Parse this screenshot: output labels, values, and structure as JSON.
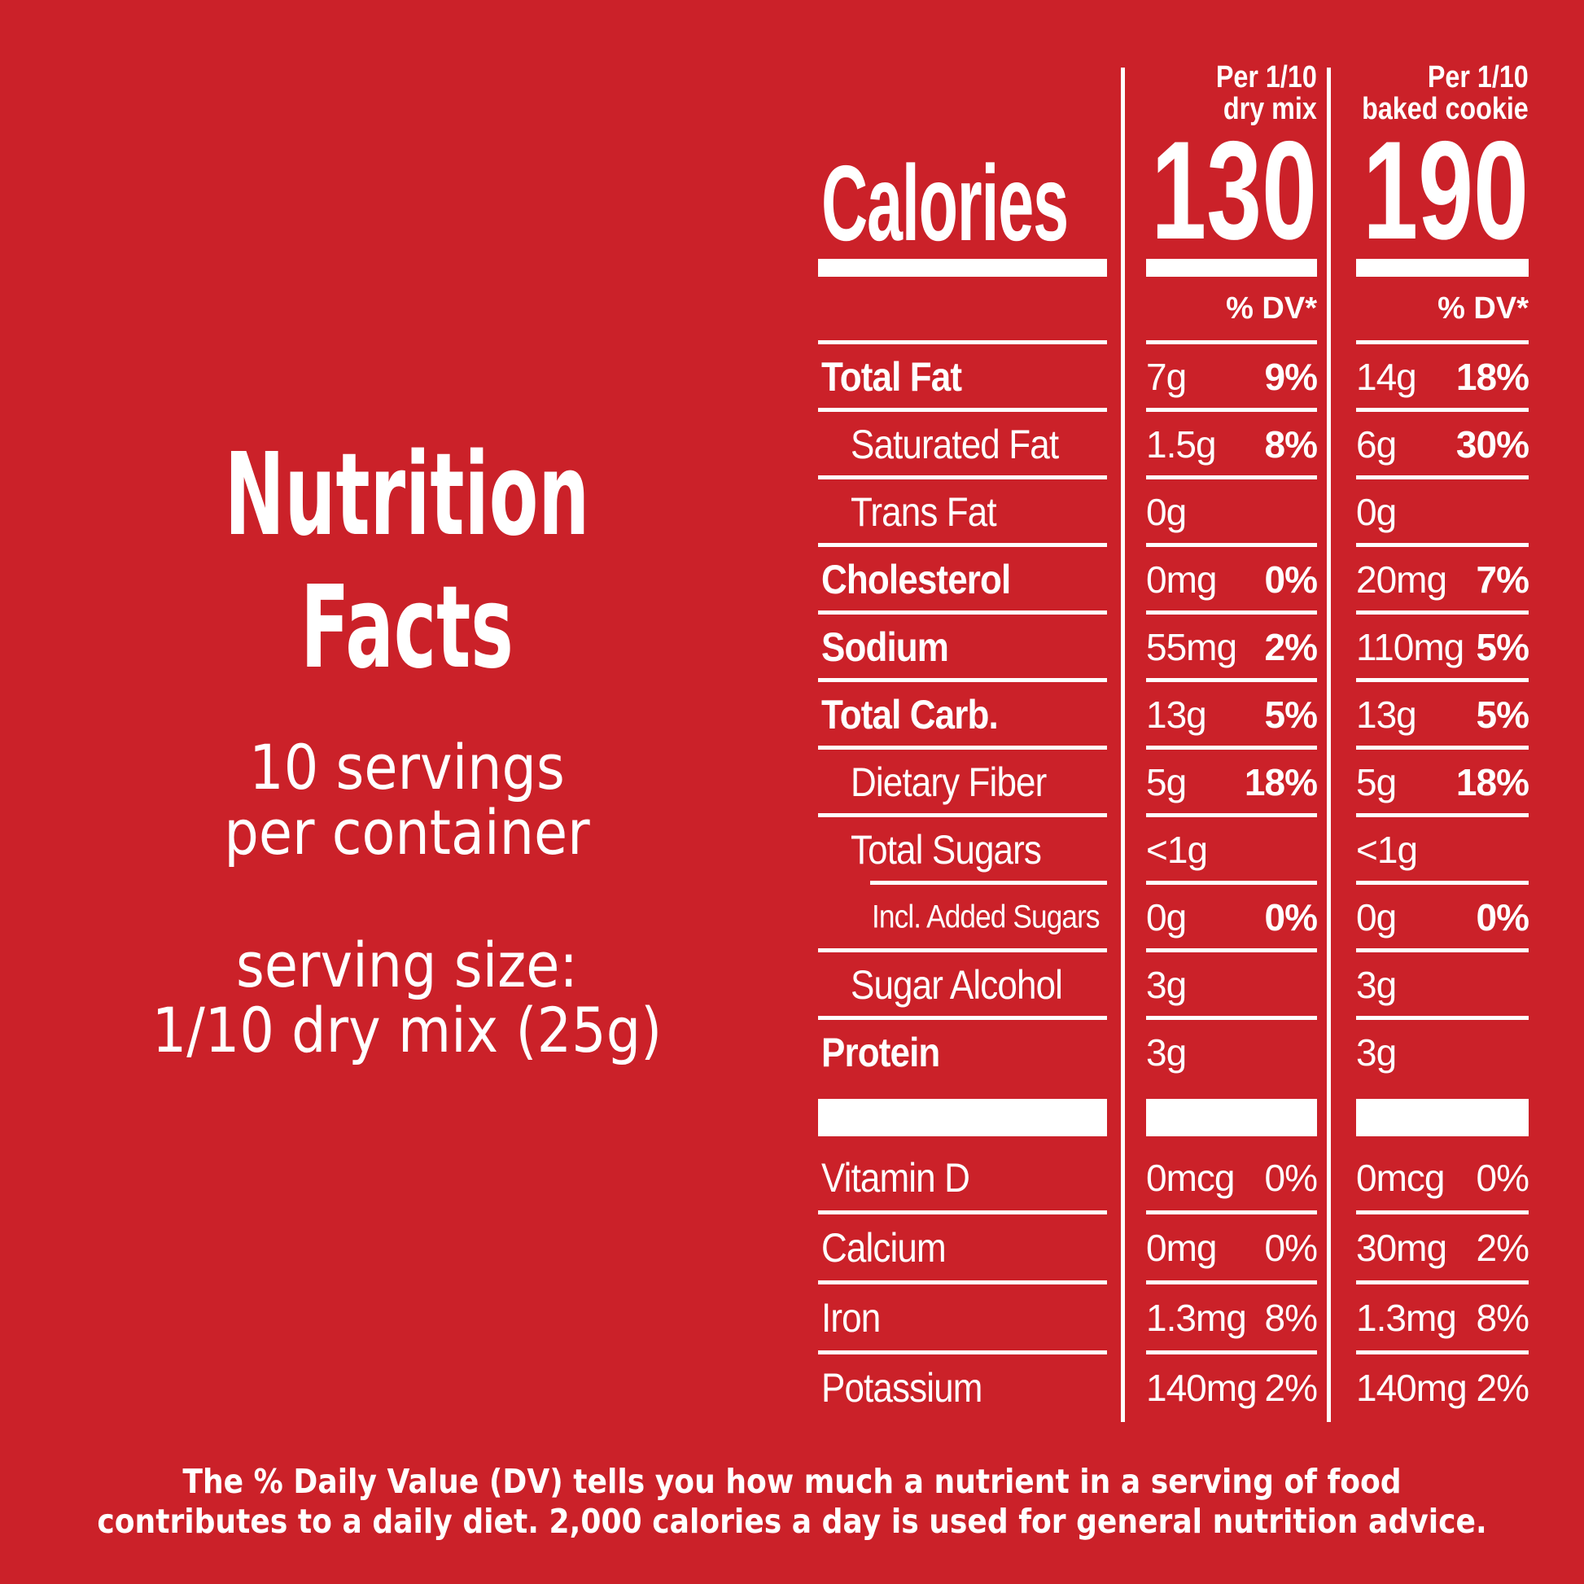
{
  "colors": {
    "background": "#cb2129",
    "foreground": "#ffffff"
  },
  "left_panel": {
    "title_line1": "Nutrition",
    "title_line2": "Facts",
    "servings_line1": "10 servings",
    "servings_line2": "per container",
    "serving_size_line1": "serving size:",
    "serving_size_line2": "1/10 dry mix (25g)"
  },
  "table": {
    "calories_label": "Calories",
    "dv_header": "% DV*",
    "columns": [
      {
        "header_line1": "Per 1/10",
        "header_line2": "dry mix",
        "calories": "130"
      },
      {
        "header_line1": "Per 1/10",
        "header_line2": "baked cookie",
        "calories": "190"
      }
    ],
    "rows": [
      {
        "label": "Total Fat",
        "bold": true,
        "indent": 0,
        "rule": "full",
        "dv_bold": true,
        "col1": {
          "amount": "7g",
          "dv": "9%"
        },
        "col2": {
          "amount": "14g",
          "dv": "18%"
        }
      },
      {
        "label": "Saturated Fat",
        "bold": false,
        "indent": 1,
        "rule": "full",
        "dv_bold": true,
        "col1": {
          "amount": "1.5g",
          "dv": "8%"
        },
        "col2": {
          "amount": "6g",
          "dv": "30%"
        }
      },
      {
        "label": "Trans Fat",
        "bold": false,
        "indent": 1,
        "rule": "full",
        "dv_bold": true,
        "col1": {
          "amount": "0g",
          "dv": ""
        },
        "col2": {
          "amount": "0g",
          "dv": ""
        }
      },
      {
        "label": "Cholesterol",
        "bold": true,
        "indent": 0,
        "rule": "full",
        "dv_bold": true,
        "col1": {
          "amount": "0mg",
          "dv": "0%"
        },
        "col2": {
          "amount": "20mg",
          "dv": "7%"
        }
      },
      {
        "label": "Sodium",
        "bold": true,
        "indent": 0,
        "rule": "full",
        "dv_bold": true,
        "col1": {
          "amount": "55mg",
          "dv": "2%"
        },
        "col2": {
          "amount": "110mg",
          "dv": "5%"
        }
      },
      {
        "label": "Total Carb.",
        "bold": true,
        "indent": 0,
        "rule": "full",
        "dv_bold": true,
        "col1": {
          "amount": "13g",
          "dv": "5%"
        },
        "col2": {
          "amount": "13g",
          "dv": "5%"
        }
      },
      {
        "label": "Dietary Fiber",
        "bold": false,
        "indent": 1,
        "rule": "full",
        "dv_bold": true,
        "col1": {
          "amount": "5g",
          "dv": "18%"
        },
        "col2": {
          "amount": "5g",
          "dv": "18%"
        }
      },
      {
        "label": "Total Sugars",
        "bold": false,
        "indent": 1,
        "rule": "indent",
        "dv_bold": true,
        "col1": {
          "amount": "<1g",
          "dv": ""
        },
        "col2": {
          "amount": "<1g",
          "dv": ""
        }
      },
      {
        "label": "Incl. Added Sugars",
        "bold": false,
        "indent": 2,
        "rule": "full",
        "dv_bold": true,
        "col1": {
          "amount": "0g",
          "dv": "0%"
        },
        "col2": {
          "amount": "0g",
          "dv": "0%"
        }
      },
      {
        "label": "Sugar Alcohol",
        "bold": false,
        "indent": 1,
        "rule": "full",
        "dv_bold": true,
        "col1": {
          "amount": "3g",
          "dv": ""
        },
        "col2": {
          "amount": "3g",
          "dv": ""
        }
      },
      {
        "label": "Protein",
        "bold": true,
        "indent": 0,
        "rule": "none",
        "dv_bold": true,
        "col1": {
          "amount": "3g",
          "dv": ""
        },
        "col2": {
          "amount": "3g",
          "dv": ""
        }
      }
    ],
    "vitamin_rows": [
      {
        "label": "Vitamin D",
        "bold": false,
        "indent": 0,
        "rule": "full",
        "dv_bold": false,
        "col1": {
          "amount": "0mcg",
          "dv": "0%"
        },
        "col2": {
          "amount": "0mcg",
          "dv": "0%"
        }
      },
      {
        "label": "Calcium",
        "bold": false,
        "indent": 0,
        "rule": "full",
        "dv_bold": false,
        "col1": {
          "amount": "0mg",
          "dv": "0%"
        },
        "col2": {
          "amount": "30mg",
          "dv": "2%"
        }
      },
      {
        "label": "Iron",
        "bold": false,
        "indent": 0,
        "rule": "full",
        "dv_bold": false,
        "col1": {
          "amount": "1.3mg",
          "dv": "8%"
        },
        "col2": {
          "amount": "1.3mg",
          "dv": "8%"
        }
      },
      {
        "label": "Potassium",
        "bold": false,
        "indent": 0,
        "rule": "none",
        "dv_bold": false,
        "col1": {
          "amount": "140mg",
          "dv": "2%"
        },
        "col2": {
          "amount": "140mg",
          "dv": "2%"
        }
      }
    ]
  },
  "footnote": {
    "line1": "The % Daily Value (DV) tells you how much a nutrient in a serving of food",
    "line2": "contributes to a daily diet. 2,000 calories a day is used for general nutrition advice."
  }
}
